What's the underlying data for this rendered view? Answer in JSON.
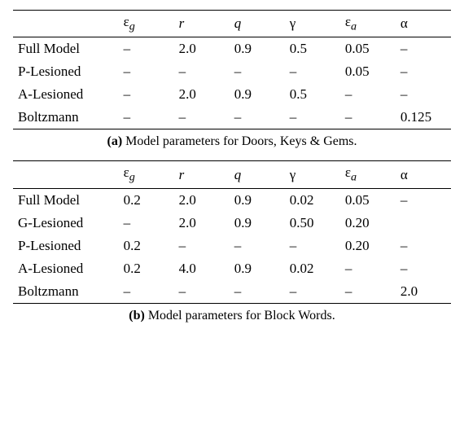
{
  "tables": [
    {
      "columns": [
        "",
        "ε_g",
        "r",
        "q",
        "γ",
        "ε_a",
        "α"
      ],
      "column_styles": [
        "",
        "",
        "ital",
        "ital",
        "",
        "",
        ""
      ],
      "column_display": [
        "",
        "ε",
        "r",
        "q",
        "γ",
        "ε",
        "α"
      ],
      "column_sub": [
        "",
        "g",
        "",
        "",
        "",
        "a",
        ""
      ],
      "rows": [
        [
          "Full Model",
          "–",
          "2.0",
          "0.9",
          "0.5",
          "0.05",
          "–"
        ],
        [
          "P-Lesioned",
          "–",
          "–",
          "–",
          "–",
          "0.05",
          "–"
        ],
        [
          "A-Lesioned",
          "–",
          "2.0",
          "0.9",
          "0.5",
          "–",
          "–"
        ],
        [
          "Boltzmann",
          "–",
          "–",
          "–",
          "–",
          "–",
          "0.125"
        ]
      ],
      "caption_label": "(a)",
      "caption_text": " Model parameters for Doors, Keys & Gems."
    },
    {
      "columns": [
        "",
        "ε_g",
        "r",
        "q",
        "γ",
        "ε_a",
        "α"
      ],
      "column_styles": [
        "",
        "",
        "ital",
        "ital",
        "",
        "",
        ""
      ],
      "column_display": [
        "",
        "ε",
        "r",
        "q",
        "γ",
        "ε",
        "α"
      ],
      "column_sub": [
        "",
        "g",
        "",
        "",
        "",
        "a",
        ""
      ],
      "rows": [
        [
          "Full Model",
          "0.2",
          "2.0",
          "0.9",
          "0.02",
          "0.05",
          "–"
        ],
        [
          "G-Lesioned",
          "–",
          "2.0",
          "0.9",
          "0.50",
          "0.20",
          ""
        ],
        [
          "P-Lesioned",
          "0.2",
          "–",
          "–",
          "–",
          "0.20",
          "–"
        ],
        [
          "A-Lesioned",
          "0.2",
          "4.0",
          "0.9",
          "0.02",
          "–",
          "–"
        ],
        [
          "Boltzmann",
          "–",
          "–",
          "–",
          "–",
          "–",
          "2.0"
        ]
      ],
      "caption_label": "(b)",
      "caption_text": " Model parameters for Block Words."
    }
  ]
}
